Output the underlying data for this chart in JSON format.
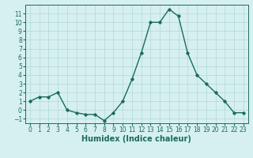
{
  "x": [
    0,
    1,
    2,
    3,
    4,
    5,
    6,
    7,
    8,
    9,
    10,
    11,
    12,
    13,
    14,
    15,
    16,
    17,
    18,
    19,
    20,
    21,
    22,
    23
  ],
  "y": [
    1,
    1.5,
    1.5,
    2,
    0,
    -0.3,
    -0.5,
    -0.5,
    -1.2,
    -0.3,
    1,
    3.5,
    6.5,
    10,
    10,
    11.5,
    10.7,
    6.5,
    4,
    3,
    2,
    1,
    -0.3,
    -0.3
  ],
  "line_color": "#1a6b5e",
  "bg_color": "#d6f0ef",
  "grid_color": "#b0d8d4",
  "xlabel": "Humidex (Indice chaleur)",
  "xlim": [
    -0.5,
    23.5
  ],
  "ylim": [
    -1.5,
    12
  ],
  "yticks": [
    -1,
    0,
    1,
    2,
    3,
    4,
    5,
    6,
    7,
    8,
    9,
    10,
    11
  ],
  "xticks": [
    0,
    1,
    2,
    3,
    4,
    5,
    6,
    7,
    8,
    9,
    10,
    11,
    12,
    13,
    14,
    15,
    16,
    17,
    18,
    19,
    20,
    21,
    22,
    23
  ],
  "marker": "D",
  "marker_size": 1.8,
  "line_width": 1.0,
  "tick_fontsize": 5.5,
  "xlabel_fontsize": 7.0
}
